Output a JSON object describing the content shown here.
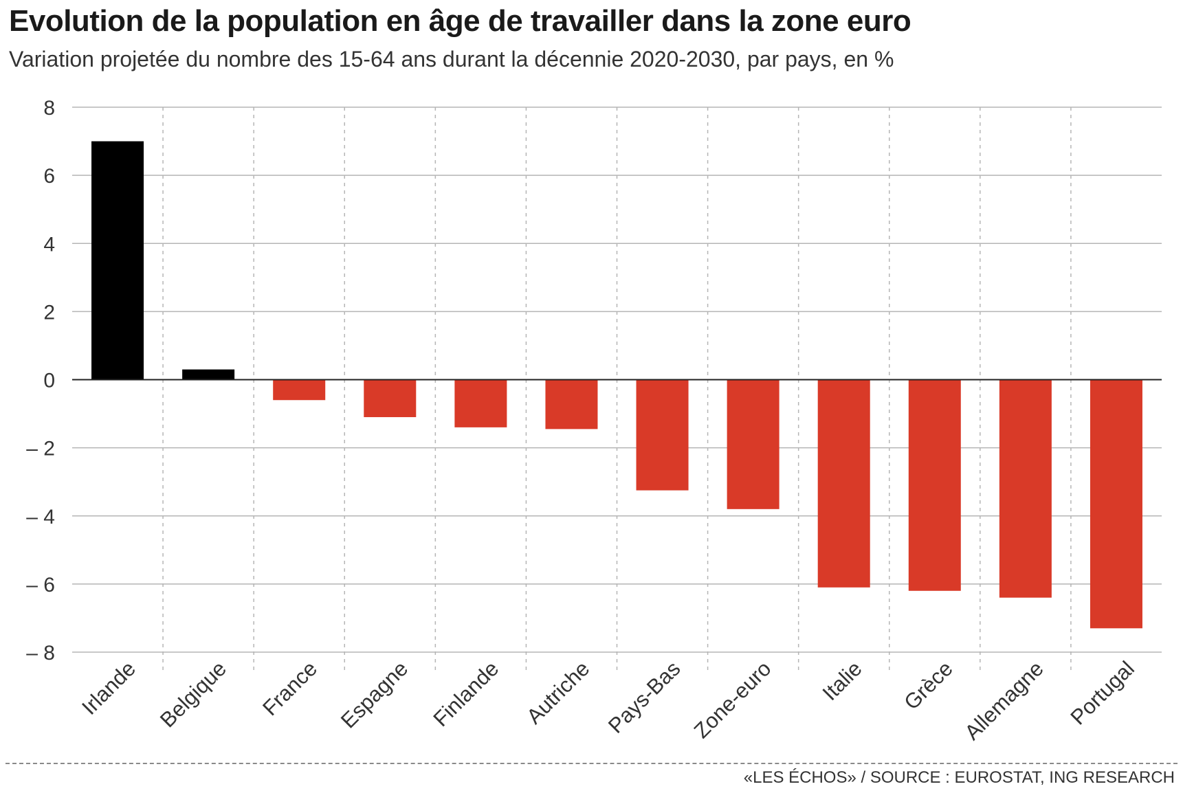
{
  "header": {
    "title": "Evolution de la population en âge de travailler dans la zone euro",
    "subtitle": "Variation projetée du nombre des 15-64 ans durant la décennie 2020-2030, par pays, en %"
  },
  "footer": {
    "source": "«LES ÉCHOS» / SOURCE : EUROSTAT,  ING RESEARCH"
  },
  "chart_data": {
    "type": "bar",
    "title": "Evolution de la population en âge de travailler dans la zone euro",
    "subtitle": "Variation projetée du nombre des 15-64 ans durant la décennie 2020-2030, par pays, en %",
    "xlabel": "",
    "ylabel": "",
    "categories": [
      "Irlande",
      "Belgique",
      "France",
      "Espagne",
      "Finlande",
      "Autriche",
      "Pays-Bas",
      "Zone-euro",
      "Italie",
      "Grèce",
      "Allemagne",
      "Portugal"
    ],
    "values": [
      7.0,
      0.3,
      -0.6,
      -1.1,
      -1.4,
      -1.45,
      -3.25,
      -3.8,
      -6.1,
      -6.2,
      -6.4,
      -7.3
    ],
    "ylim": [
      -8,
      8
    ],
    "yticks": [
      8,
      6,
      4,
      2,
      0,
      -2,
      -4,
      -6,
      -8
    ],
    "ytick_labels": [
      "8",
      "6",
      "4",
      "2",
      "0",
      "– 2",
      "– 4",
      "– 6",
      "– 8"
    ],
    "grid": true,
    "colors": {
      "positive": "#000000",
      "negative": "#d93a28",
      "grid": "#b5b5b5",
      "zero_line": "#222222"
    }
  }
}
